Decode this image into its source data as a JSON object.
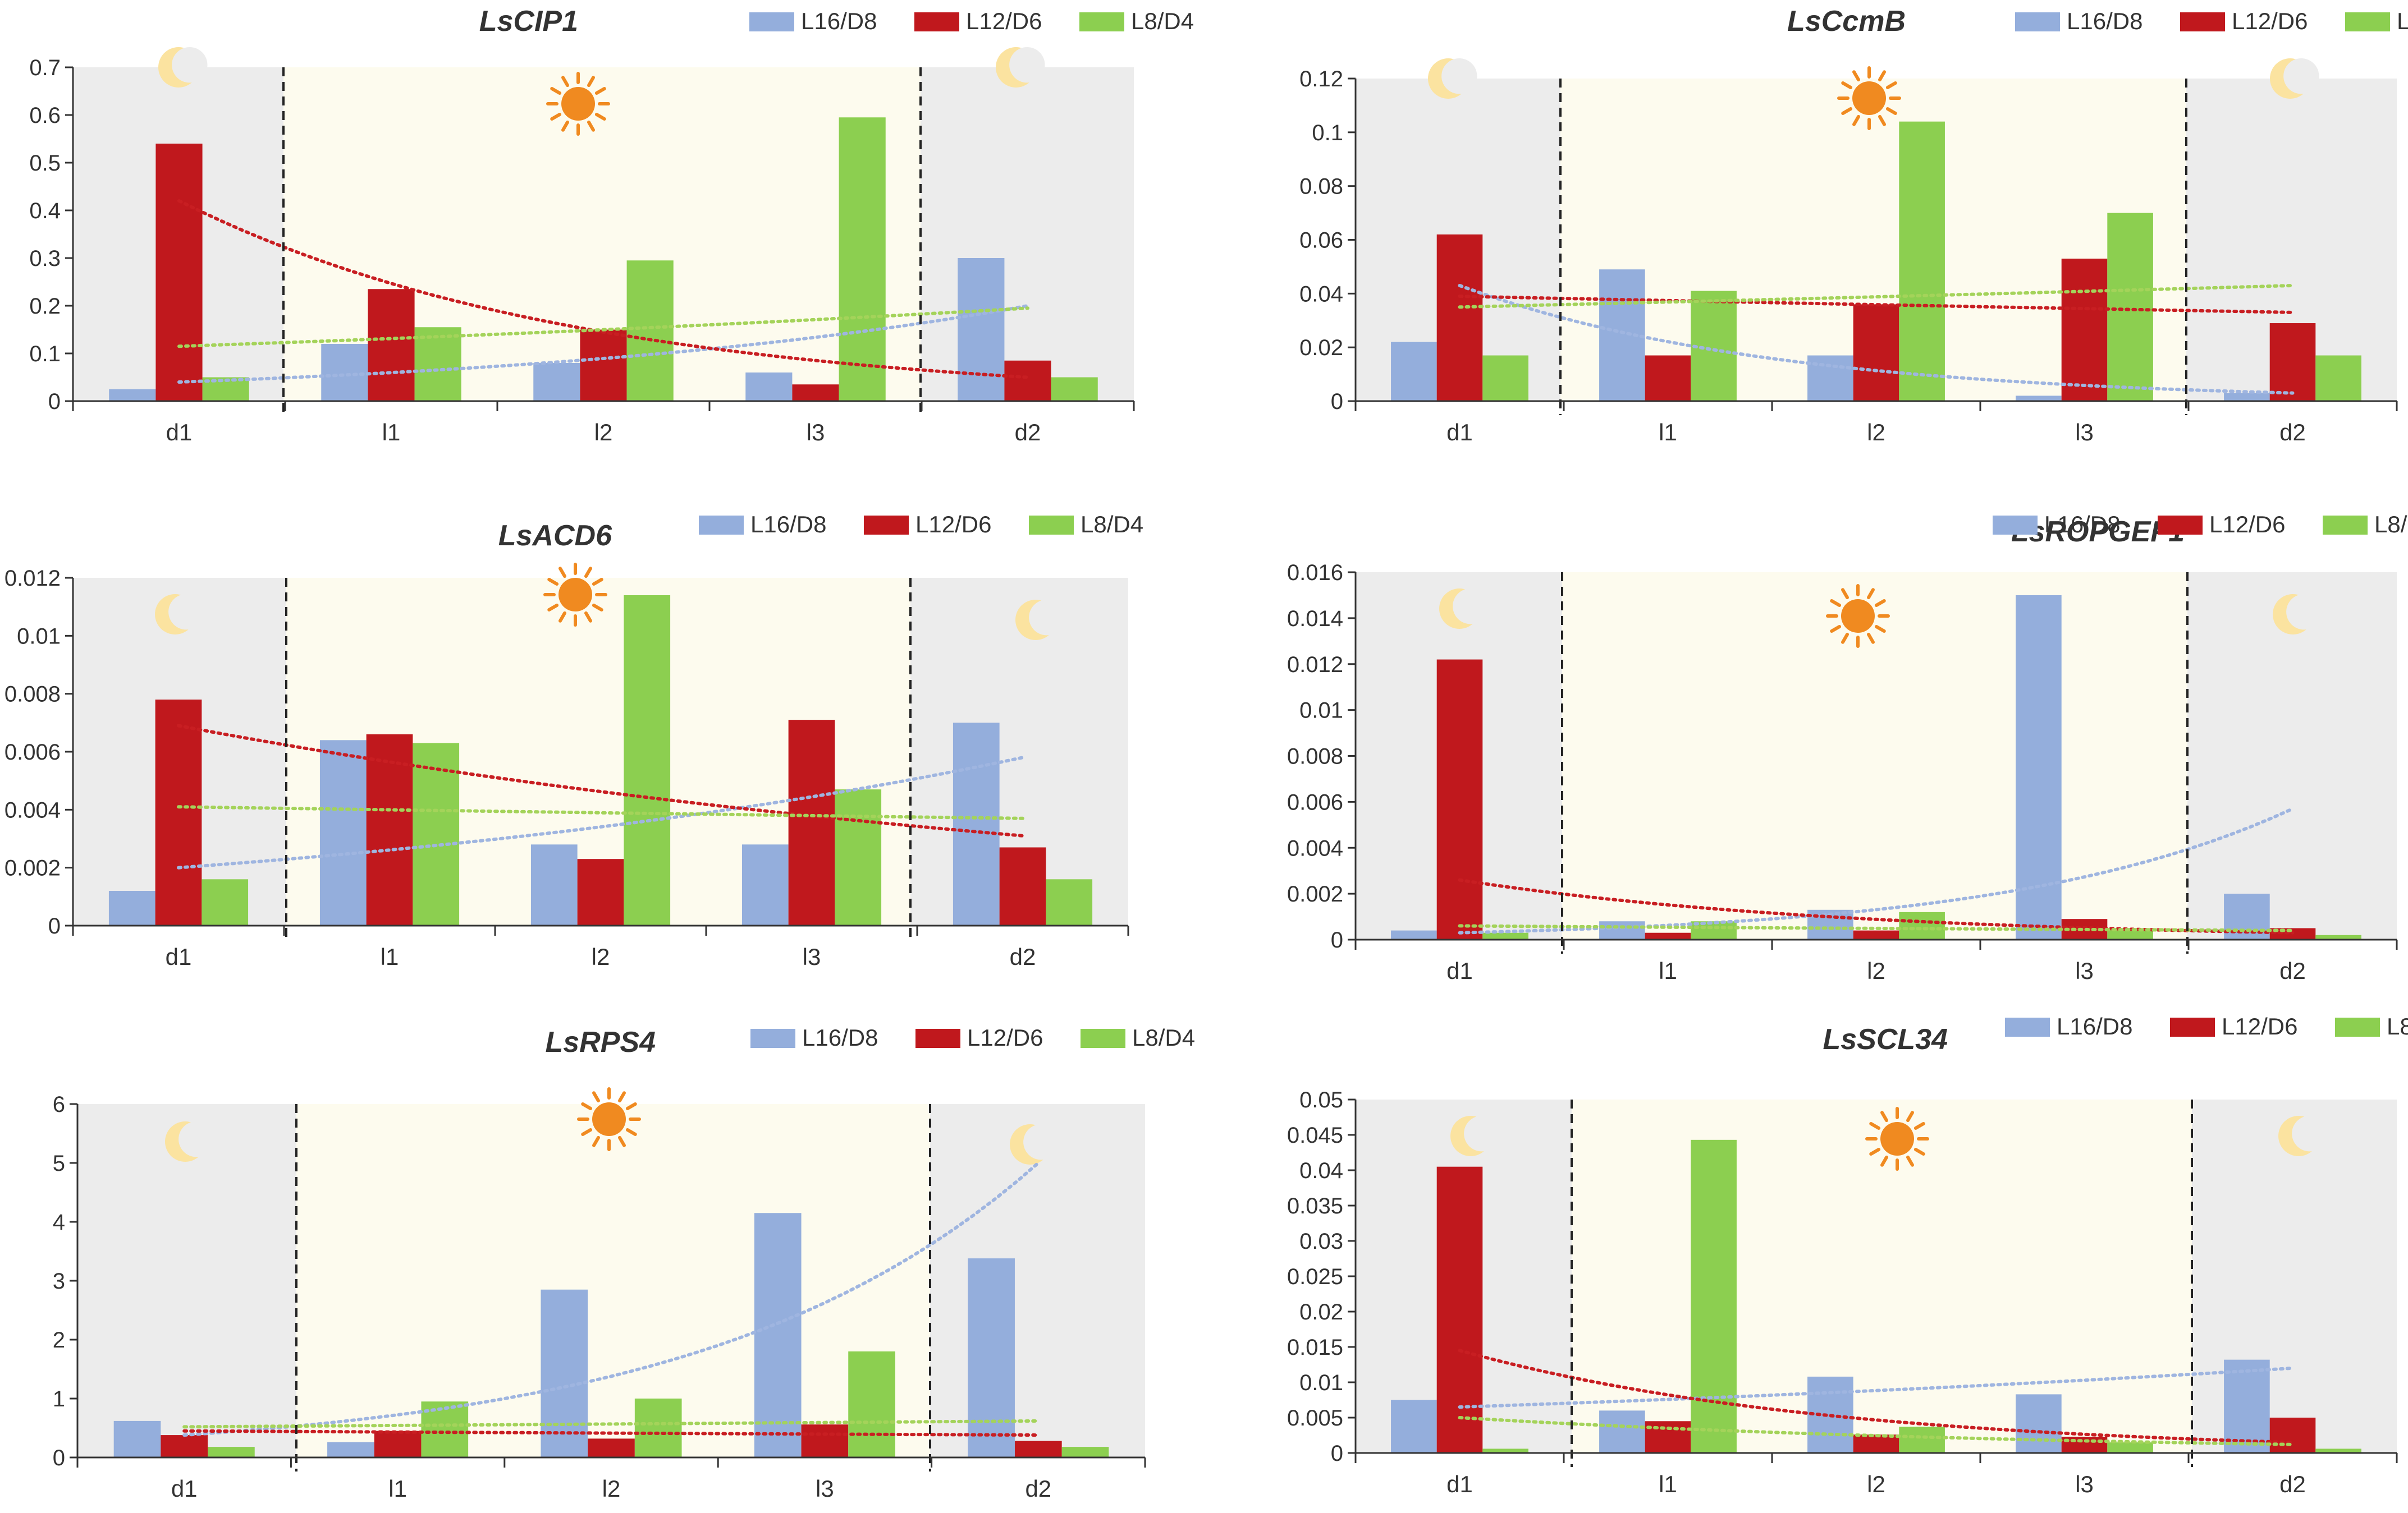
{
  "colors": {
    "series": [
      "#94aedc",
      "#c0181d",
      "#8ccf50"
    ],
    "trend": [
      "#9fb5e0",
      "#c81e22",
      "#a4d35a"
    ],
    "night_bg": "#ececec",
    "day_bg": "#fdfbee",
    "sun": "#f08a20",
    "moon": "#fbe3a0"
  },
  "icons": {
    "night": "moon-icon",
    "day": "sun-icon"
  },
  "legend": [
    "L16/D8",
    "L12/D6",
    "L8/D4"
  ],
  "chart_data": [
    {
      "type": "bar",
      "title": "LsCIP1",
      "categories": [
        "d1",
        "l1",
        "l2",
        "l3",
        "d2"
      ],
      "yticks": [
        "0",
        "0.1",
        "0.2",
        "0.3",
        "0.4",
        "0.5",
        "0.6",
        "0.7"
      ],
      "ylim": [
        0,
        0.7
      ],
      "series": [
        {
          "name": "L16/D8",
          "values": [
            0.025,
            0.12,
            0.08,
            0.06,
            0.3
          ],
          "trend": [
            0.04,
            0.2
          ]
        },
        {
          "name": "L12/D6",
          "values": [
            0.54,
            0.235,
            0.15,
            0.035,
            0.085
          ],
          "trend": [
            0.42,
            0.05
          ]
        },
        {
          "name": "L8/D4",
          "values": [
            0.05,
            0.155,
            0.295,
            0.595,
            0.05
          ],
          "trend": [
            0.115,
            0.195
          ]
        }
      ]
    },
    {
      "type": "bar",
      "title": "LsCcmB",
      "categories": [
        "d1",
        "l1",
        "l2",
        "l3",
        "d2"
      ],
      "yticks": [
        "0",
        "0.02",
        "0.04",
        "0.06",
        "0.08",
        "0.1",
        "0.12"
      ],
      "ylim": [
        0,
        0.12
      ],
      "series": [
        {
          "name": "L16/D8",
          "values": [
            0.022,
            0.049,
            0.017,
            0.002,
            0.003
          ],
          "trend": [
            0.043,
            0.003
          ]
        },
        {
          "name": "L12/D6",
          "values": [
            0.062,
            0.017,
            0.036,
            0.053,
            0.029
          ],
          "trend": [
            0.039,
            0.033
          ]
        },
        {
          "name": "L8/D4",
          "values": [
            0.017,
            0.041,
            0.104,
            0.07,
            0.017
          ],
          "trend": [
            0.035,
            0.043
          ]
        }
      ]
    },
    {
      "type": "bar",
      "title": "LsACD6",
      "categories": [
        "d1",
        "l1",
        "l2",
        "l3",
        "d2"
      ],
      "yticks": [
        "0",
        "0.002",
        "0.004",
        "0.006",
        "0.008",
        "0.01",
        "0.012"
      ],
      "ylim": [
        0,
        0.012
      ],
      "series": [
        {
          "name": "L16/D8",
          "values": [
            0.0012,
            0.0064,
            0.0028,
            0.0028,
            0.007
          ],
          "trend": [
            0.002,
            0.0058
          ]
        },
        {
          "name": "L12/D6",
          "values": [
            0.0078,
            0.0066,
            0.0023,
            0.0071,
            0.0027
          ],
          "trend": [
            0.0069,
            0.0031
          ]
        },
        {
          "name": "L8/D4",
          "values": [
            0.0016,
            0.0063,
            0.0114,
            0.0047,
            0.0016
          ],
          "trend": [
            0.0041,
            0.0037
          ]
        }
      ]
    },
    {
      "type": "bar",
      "title": "LsROPGEF1",
      "categories": [
        "d1",
        "l1",
        "l2",
        "l3",
        "d2"
      ],
      "yticks": [
        "0",
        "0.002",
        "0.004",
        "0.006",
        "0.008",
        "0.01",
        "0.012",
        "0.014",
        "0.016"
      ],
      "ylim": [
        0,
        0.016
      ],
      "series": [
        {
          "name": "L16/D8",
          "values": [
            0.0004,
            0.0008,
            0.0013,
            0.015,
            0.002
          ],
          "trend": [
            0.0003,
            0.0057
          ]
        },
        {
          "name": "L12/D6",
          "values": [
            0.0122,
            0.0003,
            0.0004,
            0.0009,
            0.0005
          ],
          "trend": [
            0.0026,
            0.0003
          ]
        },
        {
          "name": "L8/D4",
          "values": [
            0.0003,
            0.0008,
            0.0012,
            0.0005,
            0.0002
          ],
          "trend": [
            0.0006,
            0.0004
          ]
        }
      ]
    },
    {
      "type": "bar",
      "title": "LsRPS4",
      "categories": [
        "d1",
        "l1",
        "l2",
        "l3",
        "d2"
      ],
      "yticks": [
        "0",
        "1",
        "2",
        "3",
        "4",
        "5",
        "6"
      ],
      "ylim": [
        0,
        6
      ],
      "series": [
        {
          "name": "L16/D8",
          "values": [
            0.62,
            0.26,
            2.85,
            4.15,
            3.38
          ],
          "trend": [
            0.38,
            5.0
          ]
        },
        {
          "name": "L12/D6",
          "values": [
            0.38,
            0.45,
            0.32,
            0.56,
            0.28
          ],
          "trend": [
            0.45,
            0.38
          ]
        },
        {
          "name": "L8/D4",
          "values": [
            0.18,
            0.95,
            1.0,
            1.8,
            0.18
          ],
          "trend": [
            0.52,
            0.62
          ]
        }
      ]
    },
    {
      "type": "bar",
      "title": "LsSCL34",
      "categories": [
        "d1",
        "l1",
        "l2",
        "l3",
        "d2"
      ],
      "yticks": [
        "0",
        "0.005",
        "0.01",
        "0.015",
        "0.02",
        "0.025",
        "0.03",
        "0.035",
        "0.04",
        "0.045",
        "0.05"
      ],
      "ylim": [
        0,
        0.05
      ],
      "series": [
        {
          "name": "L16/D8",
          "values": [
            0.0075,
            0.006,
            0.0108,
            0.0083,
            0.0132
          ],
          "trend": [
            0.0065,
            0.012
          ]
        },
        {
          "name": "L12/D6",
          "values": [
            0.0405,
            0.0045,
            0.0026,
            0.0023,
            0.005
          ],
          "trend": [
            0.0145,
            0.0015
          ]
        },
        {
          "name": "L8/D4",
          "values": [
            0.0006,
            0.0443,
            0.0037,
            0.0015,
            0.0006
          ],
          "trend": [
            0.005,
            0.0012
          ]
        }
      ]
    }
  ]
}
